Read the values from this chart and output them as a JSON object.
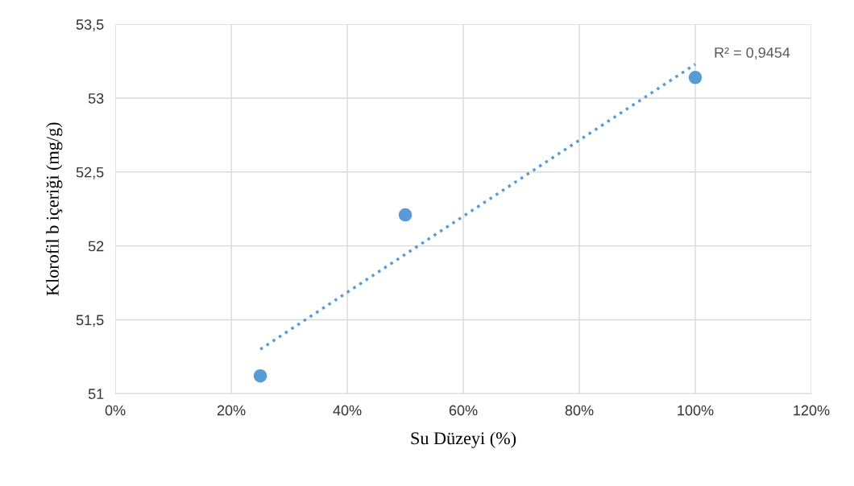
{
  "chart_data": {
    "type": "scatter",
    "xlabel": "Su Düzeyi (%)",
    "ylabel": "Klorofil b içeriği (mg/g)",
    "xlim": [
      0,
      120
    ],
    "xticks": [
      {
        "value": 0,
        "label": "0%"
      },
      {
        "value": 20,
        "label": "20%"
      },
      {
        "value": 40,
        "label": "40%"
      },
      {
        "value": 60,
        "label": "60%"
      },
      {
        "value": 80,
        "label": "80%"
      },
      {
        "value": 100,
        "label": "100%"
      },
      {
        "value": 120,
        "label": "120%"
      }
    ],
    "ylim": [
      51,
      53.5
    ],
    "yticks": [
      51,
      {
        "value": 51.5,
        "label": "51,5"
      },
      52,
      {
        "value": 52.5,
        "label": "52,5"
      },
      53,
      {
        "value": 53.5,
        "label": "53,5"
      }
    ],
    "grid": true,
    "series": [
      {
        "color": "#5b9bd5",
        "marker": "circle",
        "x": [
          25,
          50,
          100
        ],
        "values": [
          51.12,
          52.21,
          53.14
        ]
      },
      {
        "type": "line",
        "color": "#5b9bd5",
        "marker": "none",
        "line_style": "dotted",
        "x": [
          25,
          100
        ],
        "values": [
          51.3,
          53.23
        ]
      }
    ],
    "annotations": [
      "R² = 0,9454"
    ]
  }
}
